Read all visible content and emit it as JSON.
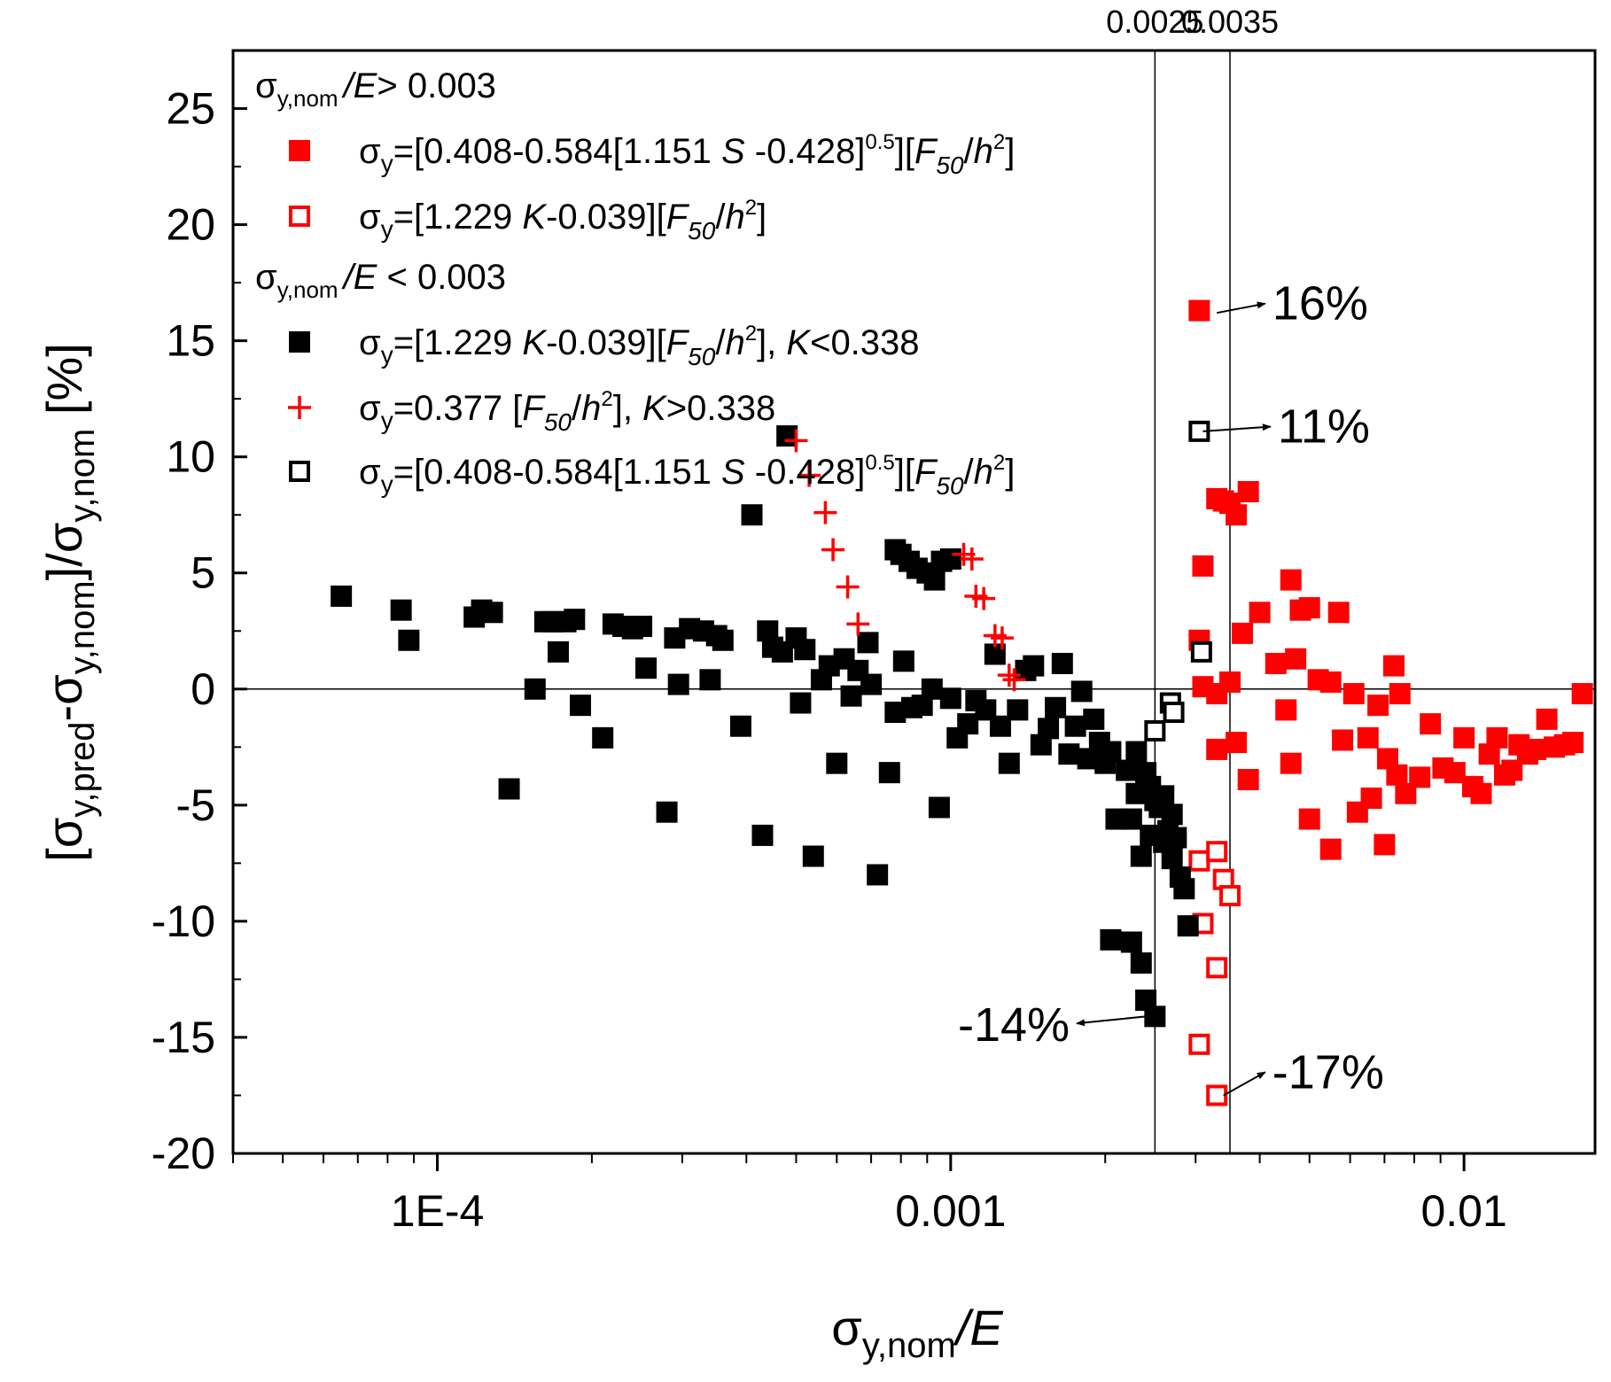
{
  "chart_data": {
    "type": "scatter",
    "xscale": "log",
    "xlim": [
      4e-05,
      0.018
    ],
    "ylim": [
      -20,
      27.5
    ],
    "xlabel": {
      "main": "σ",
      "sub": "y,nom",
      "tail": "/E"
    },
    "ylabel": {
      "p1": "[σ",
      "s1": "y,pred",
      "p2": "-σ",
      "s2": "y,nom",
      "p3": "]/σ",
      "s3": "y,nom",
      "p4": " [%]"
    },
    "x_ticks": [
      {
        "v": 0.0001,
        "label": "1E-4"
      },
      {
        "v": 0.001,
        "label": "0.001"
      },
      {
        "v": 0.01,
        "label": "0.01"
      }
    ],
    "y_ticks": [
      {
        "v": 25,
        "label": "25"
      },
      {
        "v": 20,
        "label": "20"
      },
      {
        "v": 15,
        "label": "15"
      },
      {
        "v": 10,
        "label": "10"
      },
      {
        "v": 5,
        "label": "5"
      },
      {
        "v": 0,
        "label": "0"
      },
      {
        "v": -5,
        "label": "-5"
      },
      {
        "v": -10,
        "label": "-10"
      },
      {
        "v": -15,
        "label": "-15"
      },
      {
        "v": -20,
        "label": "-20"
      }
    ],
    "ref_lines": [
      {
        "x": 0.0025,
        "label": "0.0025"
      },
      {
        "x": 0.0035,
        "label": "0.0035"
      }
    ],
    "zero_line": 0,
    "colors": {
      "red": "#ff0000",
      "black": "#000000"
    },
    "legend": {
      "headers": [
        {
          "pre": "σ",
          "sub": "y,nom",
          "italic": "/E",
          "post": "> 0.003"
        },
        {
          "pre": "σ",
          "sub": "y,nom",
          "italic": "/E",
          "post": " < 0.003"
        }
      ],
      "entries": [
        {
          "pre": "=[0.408-0.584[1.151 ",
          "it1": "S",
          "mid": " -0.428]",
          "sup1": "0.5",
          "mid2": "][",
          "it2": "F",
          "sub2": "50",
          "mid3": "/",
          "it3": "h",
          "sup3": "2",
          "tail": "]"
        },
        {
          "pre": "=[1.229 ",
          "it1": "K",
          "mid": "-0.039][",
          "it2": "F",
          "sub2": "50",
          "mid3": "/",
          "it3": "h",
          "sup3": "2",
          "tail": "]"
        },
        {
          "pre": "=[1.229 ",
          "it1": "K",
          "mid": "-0.039][",
          "it2": "F",
          "sub2": "50",
          "mid3": "/",
          "it3": "h",
          "sup3": "2",
          "tail": "], ",
          "it4": "K",
          "tail2": "<0.338"
        },
        {
          "pre": "=0.377 [",
          "it2": "F",
          "sub2": "50",
          "mid3": "/",
          "it3": "h",
          "sup3": "2",
          "tail": "], ",
          "it4": "K",
          "tail2": ">0.338"
        },
        {
          "pre": "=[0.408-0.584[1.151 ",
          "it1": "S",
          "mid": " -0.428]",
          "sup1": "0.5",
          "mid2": "][",
          "it2": "F",
          "sub2": "50",
          "mid3": "/",
          "it3": "h",
          "sup3": "2",
          "tail": "]"
        }
      ],
      "sigma": "σ",
      "sigma_sub": "y"
    },
    "annotations": [
      {
        "text": "16%",
        "from": [
          0.0033,
          16.2
        ],
        "to": [
          0.0041,
          16.6
        ]
      },
      {
        "text": "11%",
        "from": [
          0.0031,
          11.1
        ],
        "to": [
          0.0042,
          11.3
        ]
      },
      {
        "text": "-14%",
        "from": [
          0.0024,
          -14.1
        ],
        "to": [
          0.00176,
          -14.4
        ]
      },
      {
        "text": "-17%",
        "from": [
          0.0034,
          -17.5
        ],
        "to": [
          0.0041,
          -16.5
        ]
      }
    ],
    "series": [
      {
        "name": "σy,nom/E > 0.003: σy=[0.408-0.584[1.151 S -0.428]^0.5][F50/h2]",
        "marker": "filled-square",
        "color": "#ff0000",
        "points": [
          [
            0.00305,
            16.3
          ],
          [
            0.0031,
            5.3
          ],
          [
            0.00305,
            2.1
          ],
          [
            0.0033,
            8.2
          ],
          [
            0.0034,
            8.1
          ],
          [
            0.0036,
            7.5
          ],
          [
            0.0038,
            8.5
          ],
          [
            0.0035,
            8.0
          ],
          [
            0.0031,
            0.1
          ],
          [
            0.0033,
            -0.2
          ],
          [
            0.0035,
            0.3
          ],
          [
            0.0037,
            2.4
          ],
          [
            0.004,
            3.3
          ],
          [
            0.0043,
            1.1
          ],
          [
            0.0046,
            4.7
          ],
          [
            0.0048,
            3.4
          ],
          [
            0.005,
            3.5
          ],
          [
            0.0052,
            0.4
          ],
          [
            0.0055,
            0.3
          ],
          [
            0.0057,
            3.3
          ],
          [
            0.0047,
            1.3
          ],
          [
            0.0045,
            -0.9
          ],
          [
            0.0033,
            -2.6
          ],
          [
            0.0036,
            -2.3
          ],
          [
            0.0038,
            -3.9
          ],
          [
            0.0046,
            -3.2
          ],
          [
            0.005,
            -5.6
          ],
          [
            0.0055,
            -6.9
          ],
          [
            0.0058,
            -2.2
          ],
          [
            0.0062,
            -5.3
          ],
          [
            0.0066,
            -4.7
          ],
          [
            0.007,
            -6.7
          ],
          [
            0.0061,
            -0.2
          ],
          [
            0.0068,
            -0.7
          ],
          [
            0.0073,
            1.0
          ],
          [
            0.0075,
            -0.2
          ],
          [
            0.0065,
            -2.1
          ],
          [
            0.0071,
            -3.0
          ],
          [
            0.0074,
            -3.7
          ],
          [
            0.0077,
            -4.5
          ],
          [
            0.0082,
            -3.8
          ],
          [
            0.0086,
            -1.5
          ],
          [
            0.0091,
            -3.4
          ],
          [
            0.0096,
            -3.6
          ],
          [
            0.01,
            -2.1
          ],
          [
            0.0104,
            -4.2
          ],
          [
            0.0108,
            -4.5
          ],
          [
            0.0112,
            -2.8
          ],
          [
            0.0116,
            -2.1
          ],
          [
            0.012,
            -3.7
          ],
          [
            0.0124,
            -3.5
          ],
          [
            0.0128,
            -2.4
          ],
          [
            0.0133,
            -2.8
          ],
          [
            0.0138,
            -2.6
          ],
          [
            0.0145,
            -1.3
          ],
          [
            0.015,
            -2.5
          ],
          [
            0.0157,
            -2.4
          ],
          [
            0.0163,
            -2.3
          ],
          [
            0.017,
            -0.2
          ]
        ]
      },
      {
        "name": "σy,nom/E > 0.003: σy=[1.229 K-0.039][F50/h2]",
        "marker": "open-square",
        "color": "#ff0000",
        "points": [
          [
            0.00305,
            -7.4
          ],
          [
            0.0033,
            -7.0
          ],
          [
            0.0034,
            -8.2
          ],
          [
            0.0035,
            -8.9
          ],
          [
            0.0031,
            -10.1
          ],
          [
            0.0033,
            -12.0
          ],
          [
            0.00305,
            -15.3
          ],
          [
            0.0033,
            -17.5
          ]
        ]
      },
      {
        "name": "σy,nom/E < 0.003: σy=[1.229 K-0.039][F50/h2], K<0.338",
        "marker": "filled-square",
        "color": "#000000",
        "points": [
          [
            6.5e-05,
            4.0
          ],
          [
            8.5e-05,
            3.4
          ],
          [
            8.8e-05,
            2.1
          ],
          [
            0.000118,
            3.1
          ],
          [
            0.000122,
            3.4
          ],
          [
            0.000128,
            3.3
          ],
          [
            0.000138,
            -4.3
          ],
          [
            0.000155,
            0.0
          ],
          [
            0.000162,
            2.9
          ],
          [
            0.000168,
            2.9
          ],
          [
            0.000172,
            1.6
          ],
          [
            0.000178,
            2.9
          ],
          [
            0.00019,
            -0.7
          ],
          [
            0.000185,
            3.0
          ],
          [
            0.00021,
            -2.1
          ],
          [
            0.00022,
            2.8
          ],
          [
            0.00023,
            2.7
          ],
          [
            0.00024,
            2.6
          ],
          [
            0.00025,
            2.7
          ],
          [
            0.000255,
            0.9
          ],
          [
            0.00028,
            -5.3
          ],
          [
            0.00029,
            2.2
          ],
          [
            0.000295,
            0.2
          ],
          [
            0.00031,
            2.6
          ],
          [
            0.00033,
            2.5
          ],
          [
            0.00034,
            0.4
          ],
          [
            0.00035,
            2.3
          ],
          [
            0.00036,
            2.1
          ],
          [
            0.00039,
            -1.6
          ],
          [
            0.00041,
            7.5
          ],
          [
            0.00044,
            2.5
          ],
          [
            0.00043,
            -6.3
          ],
          [
            0.00045,
            1.8
          ],
          [
            0.00047,
            1.6
          ],
          [
            0.00048,
            10.9
          ],
          [
            0.0005,
            2.2
          ],
          [
            0.00051,
            -0.6
          ],
          [
            0.00052,
            1.7
          ],
          [
            0.00054,
            -7.2
          ],
          [
            0.00056,
            0.4
          ],
          [
            0.00058,
            1.0
          ],
          [
            0.0006,
            -3.2
          ],
          [
            0.00062,
            1.3
          ],
          [
            0.00064,
            -0.3
          ],
          [
            0.00066,
            0.8
          ],
          [
            0.00069,
            2.0
          ],
          [
            0.0007,
            0.2
          ],
          [
            0.00072,
            -8.0
          ],
          [
            0.00078,
            6.0
          ],
          [
            0.0008,
            5.8
          ],
          [
            0.00083,
            5.5
          ],
          [
            0.00086,
            5.2
          ],
          [
            0.0009,
            5.0
          ],
          [
            0.00093,
            4.7
          ],
          [
            0.00096,
            5.5
          ],
          [
            0.001,
            5.6
          ],
          [
            0.00076,
            -3.6
          ],
          [
            0.00078,
            -1.0
          ],
          [
            0.00081,
            1.2
          ],
          [
            0.00084,
            -0.8
          ],
          [
            0.00088,
            -0.7
          ],
          [
            0.00092,
            0.0
          ],
          [
            0.00095,
            -5.1
          ],
          [
            0.001,
            -0.4
          ],
          [
            0.00103,
            -2.1
          ],
          [
            0.00108,
            -1.5
          ],
          [
            0.00112,
            -0.5
          ],
          [
            0.00117,
            -0.9
          ],
          [
            0.00122,
            1.5
          ],
          [
            0.00125,
            -1.6
          ],
          [
            0.0013,
            -3.2
          ],
          [
            0.00135,
            -0.9
          ],
          [
            0.0014,
            0.8
          ],
          [
            0.00145,
            1.0
          ],
          [
            0.0015,
            -2.4
          ],
          [
            0.00155,
            -1.7
          ],
          [
            0.0016,
            -0.8
          ],
          [
            0.00165,
            1.1
          ],
          [
            0.0017,
            -2.8
          ],
          [
            0.00175,
            -1.6
          ],
          [
            0.0018,
            -0.1
          ],
          [
            0.00185,
            -3.0
          ],
          [
            0.0019,
            -1.3
          ],
          [
            0.00195,
            -2.3
          ],
          [
            0.002,
            -3.2
          ],
          [
            0.00205,
            -2.7
          ],
          [
            0.0021,
            -5.6
          ],
          [
            0.0022,
            -3.5
          ],
          [
            0.00225,
            -5.6
          ],
          [
            0.0023,
            -2.7
          ],
          [
            0.00235,
            -7.2
          ],
          [
            0.0024,
            -3.6
          ],
          [
            0.00245,
            -4.2
          ],
          [
            0.0025,
            -4.8
          ],
          [
            0.00255,
            -5.1
          ],
          [
            0.0026,
            -4.6
          ],
          [
            0.00265,
            -6.1
          ],
          [
            0.0027,
            -7.3
          ],
          [
            0.00275,
            -6.4
          ],
          [
            0.0028,
            -8.1
          ],
          [
            0.00285,
            -8.6
          ],
          [
            0.0029,
            -10.2
          ],
          [
            0.00205,
            -10.8
          ],
          [
            0.00225,
            -10.9
          ],
          [
            0.00235,
            -11.8
          ],
          [
            0.0024,
            -13.4
          ],
          [
            0.0025,
            -14.1
          ],
          [
            0.0023,
            -4.5
          ],
          [
            0.00245,
            -6.3
          ],
          [
            0.0027,
            -5.4
          ],
          [
            0.0026,
            -6.6
          ]
        ]
      },
      {
        "name": "σy,nom/E < 0.003: σy=0.377 [F50/h2], K>0.338",
        "marker": "plus",
        "color": "#ff0000",
        "points": [
          [
            0.0005,
            10.7
          ],
          [
            0.00053,
            9.2
          ],
          [
            0.00057,
            7.6
          ],
          [
            0.00059,
            6.0
          ],
          [
            0.00063,
            4.4
          ],
          [
            0.00066,
            2.8
          ],
          [
            0.00106,
            5.8
          ],
          [
            0.0011,
            5.6
          ],
          [
            0.00112,
            4.0
          ],
          [
            0.00116,
            3.9
          ],
          [
            0.00122,
            2.3
          ],
          [
            0.00126,
            2.2
          ],
          [
            0.0013,
            0.6
          ],
          [
            0.00133,
            0.4
          ]
        ]
      },
      {
        "name": "σy,nom/E < 0.003: σy=[0.408-0.584[1.151 S -0.428]^0.5][F50/h2]",
        "marker": "open-square",
        "color": "#000000",
        "points": [
          [
            0.00305,
            11.1
          ],
          [
            0.00308,
            1.6
          ],
          [
            0.00268,
            -0.6
          ],
          [
            0.00272,
            -1.0
          ],
          [
            0.0025,
            -1.8
          ]
        ]
      }
    ]
  }
}
